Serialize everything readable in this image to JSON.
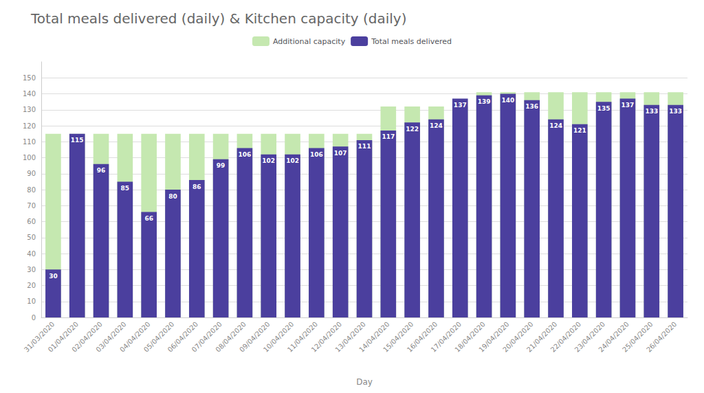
{
  "chart_data": {
    "type": "bar",
    "title": "Total meals delivered (daily) & Kitchen capacity (daily)",
    "xlabel": "Day",
    "categories": [
      "31/03/2020",
      "01/04/2020",
      "02/04/2020",
      "03/04/2020",
      "04/04/2020",
      "05/04/2020",
      "06/04/2020",
      "07/04/2020",
      "08/04/2020",
      "09/04/2020",
      "10/04/2020",
      "11/04/2020",
      "12/04/2020",
      "13/04/2020",
      "14/04/2020",
      "15/04/2020",
      "16/04/2020",
      "17/04/2020",
      "18/04/2020",
      "19/04/2020",
      "20/04/2020",
      "21/04/2020",
      "22/04/2020",
      "23/04/2020",
      "24/04/2020",
      "25/04/2020",
      "26/04/2020"
    ],
    "series": [
      {
        "name": "Additional capacity",
        "color": "#c5e8b0",
        "values": [
          115,
          115,
          115,
          115,
          115,
          115,
          115,
          115,
          115,
          115,
          115,
          115,
          115,
          115,
          132,
          132,
          132,
          132,
          141,
          141,
          141,
          141,
          141,
          141,
          141,
          141,
          141
        ]
      },
      {
        "name": "Total meals delivered",
        "color": "#4b3f9e",
        "data_labels": true,
        "values": [
          30,
          115,
          96,
          85,
          66,
          80,
          86,
          99,
          106,
          102,
          102,
          106,
          107,
          111,
          117,
          122,
          124,
          137,
          139,
          140,
          136,
          124,
          121,
          135,
          137,
          133,
          133
        ]
      }
    ],
    "ylim": [
      0,
      160
    ],
    "yticks": [
      0,
      10,
      20,
      30,
      40,
      50,
      60,
      70,
      80,
      90,
      100,
      110,
      120,
      130,
      140,
      150
    ],
    "grid": true,
    "legend": "top"
  }
}
